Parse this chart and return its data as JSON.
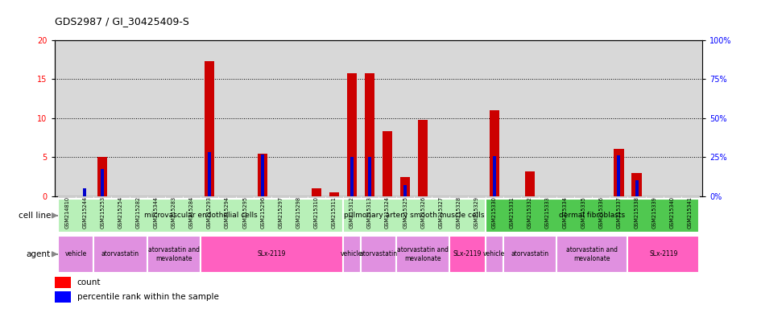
{
  "title": "GDS2987 / GI_30425409-S",
  "samples": [
    "GSM214810",
    "GSM215244",
    "GSM215253",
    "GSM215254",
    "GSM215282",
    "GSM215344",
    "GSM215283",
    "GSM215284",
    "GSM215293",
    "GSM215294",
    "GSM215295",
    "GSM215296",
    "GSM215297",
    "GSM215298",
    "GSM215310",
    "GSM215311",
    "GSM215312",
    "GSM215313",
    "GSM215324",
    "GSM215325",
    "GSM215326",
    "GSM215327",
    "GSM215328",
    "GSM215329",
    "GSM215330",
    "GSM215331",
    "GSM215332",
    "GSM215333",
    "GSM215334",
    "GSM215335",
    "GSM215336",
    "GSM215337",
    "GSM215338",
    "GSM215339",
    "GSM215340",
    "GSM215341"
  ],
  "count_values": [
    0.0,
    0.0,
    5.0,
    0.0,
    0.0,
    0.0,
    0.0,
    0.0,
    17.3,
    0.0,
    0.0,
    5.4,
    0.0,
    0.0,
    1.0,
    0.5,
    15.8,
    15.8,
    8.3,
    2.5,
    9.8,
    0.0,
    0.0,
    0.0,
    11.0,
    0.0,
    3.2,
    0.0,
    0.0,
    0.0,
    0.0,
    6.1,
    3.0,
    0.0,
    0.0,
    0.0
  ],
  "percentile_values": [
    0.0,
    1.0,
    3.5,
    0.0,
    0.0,
    0.0,
    0.0,
    0.0,
    5.7,
    0.0,
    0.0,
    5.3,
    0.0,
    0.0,
    0.0,
    0.0,
    5.0,
    5.0,
    0.0,
    1.4,
    0.0,
    0.0,
    0.0,
    0.0,
    5.1,
    0.0,
    0.0,
    0.0,
    0.0,
    0.0,
    0.0,
    5.2,
    2.0,
    0.0,
    0.0,
    0.0
  ],
  "ylim_left": [
    0,
    20
  ],
  "ylim_right": [
    0,
    100
  ],
  "yticks_left": [
    0,
    5,
    10,
    15,
    20
  ],
  "yticks_right": [
    0,
    25,
    50,
    75,
    100
  ],
  "bar_color": "#CC0000",
  "percentile_color": "#0000CC",
  "bar_width": 0.55,
  "pct_bar_width": 0.18,
  "chart_bg": "#d8d8d8",
  "cell_line_groups": [
    {
      "label": "microvascular endothelial cells",
      "start": 0,
      "end": 15,
      "color": "#b8f0b8"
    },
    {
      "label": "pulmonary artery smooth muscle cells",
      "start": 16,
      "end": 23,
      "color": "#b8f0b8"
    },
    {
      "label": "dermal fibroblasts",
      "start": 24,
      "end": 35,
      "color": "#50c850"
    }
  ],
  "agent_groups": [
    {
      "label": "vehicle",
      "start": 0,
      "end": 1,
      "color": "#e090e0"
    },
    {
      "label": "atorvastatin",
      "start": 2,
      "end": 4,
      "color": "#e090e0"
    },
    {
      "label": "atorvastatin and\nmevalonate",
      "start": 5,
      "end": 7,
      "color": "#e090e0"
    },
    {
      "label": "SLx-2119",
      "start": 8,
      "end": 15,
      "color": "#ff60c0"
    },
    {
      "label": "vehicle",
      "start": 16,
      "end": 16,
      "color": "#e090e0"
    },
    {
      "label": "atorvastatin",
      "start": 17,
      "end": 18,
      "color": "#e090e0"
    },
    {
      "label": "atorvastatin and\nmevalonate",
      "start": 19,
      "end": 21,
      "color": "#e090e0"
    },
    {
      "label": "SLx-2119",
      "start": 22,
      "end": 23,
      "color": "#ff60c0"
    },
    {
      "label": "vehicle",
      "start": 24,
      "end": 24,
      "color": "#e090e0"
    },
    {
      "label": "atorvastatin",
      "start": 25,
      "end": 27,
      "color": "#e090e0"
    },
    {
      "label": "atorvastatin and\nmevalonate",
      "start": 28,
      "end": 31,
      "color": "#e090e0"
    },
    {
      "label": "SLx-2119",
      "start": 32,
      "end": 35,
      "color": "#ff60c0"
    }
  ]
}
